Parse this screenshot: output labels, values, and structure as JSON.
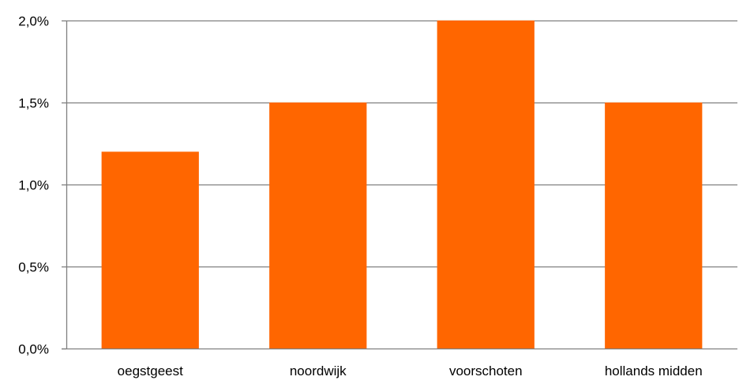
{
  "chart_data": {
    "type": "bar",
    "title": "",
    "xlabel": "",
    "ylabel": "",
    "categories": [
      "oegstgeest",
      "noordwijk",
      "voorschoten",
      "hollands midden"
    ],
    "values": [
      1.2,
      1.5,
      2.0,
      1.5
    ],
    "ylim": [
      0,
      2.0
    ],
    "yticks": [
      0,
      0.5,
      1.0,
      1.5,
      2.0
    ],
    "ytick_labels": [
      "0,0%",
      "0,5%",
      "1,0%",
      "1,5%",
      "2,0%"
    ],
    "grid": true,
    "legend": "none",
    "colors": {
      "bar": "#ff6600",
      "grid": "#7f7f7f",
      "axis": "#7f7f7f",
      "text": "#000000"
    }
  }
}
